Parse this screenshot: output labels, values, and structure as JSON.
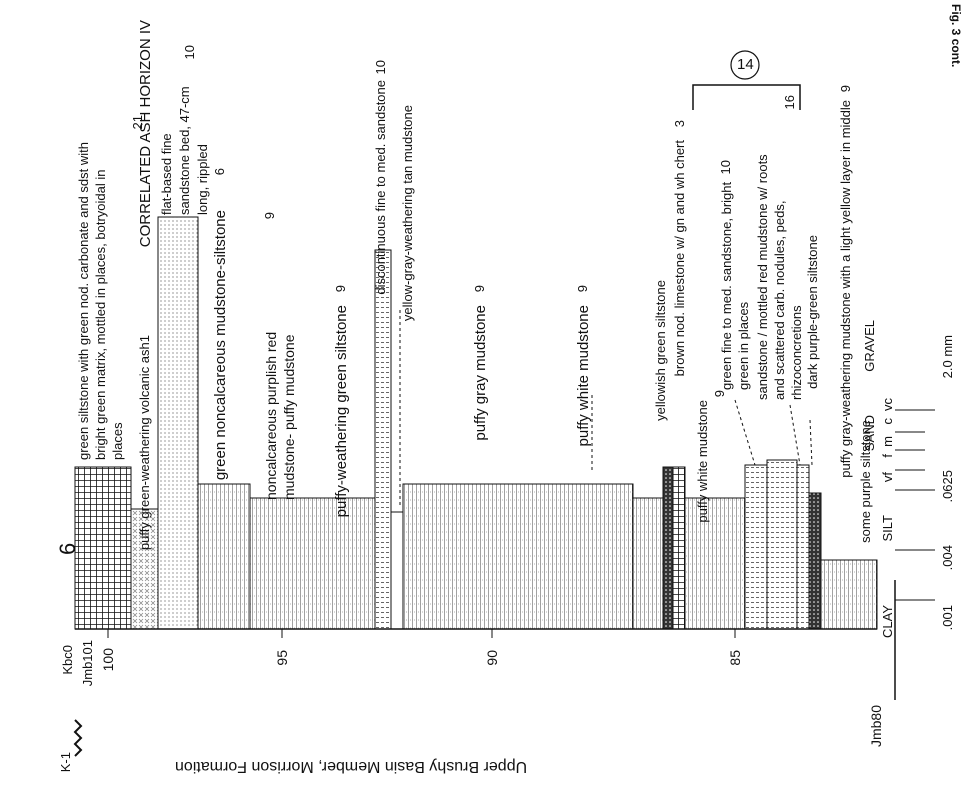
{
  "figure_label": "Fig. 3 cont.",
  "section_number": "6",
  "circled_number": "14",
  "axis": {
    "title": "Upper Brushy Basin Member, Morrison Formation",
    "ticks": [
      "100",
      "95",
      "90",
      "85"
    ],
    "contacts": [
      "Kbc0",
      "K-1",
      "Jmb101",
      "Jmb80"
    ]
  },
  "grain_scale": {
    "classes": [
      "CLAY",
      "SILT",
      "vf",
      "f",
      "m",
      "c",
      "vc",
      "SAND",
      "GRAVEL"
    ],
    "sizes": [
      ".001",
      ".004",
      ".0625",
      "2.0 mm"
    ]
  },
  "units": [
    {
      "text": "green siltstone with green nod. carbonate and sdst with bright green matrix, mottled in places, botryoidal in places",
      "num": "21"
    },
    {
      "text": "puffy green-weathering volcanic ash1",
      "num": ""
    },
    {
      "text": "CORRELATED ASH HORIZON IV",
      "num": ""
    },
    {
      "text": "flat-based fine sandstone bed, 47-cm long, rippled",
      "num": "10"
    },
    {
      "text": "green noncalcareous mudstone-siltstone",
      "num": "6"
    },
    {
      "text": "noncalcareous purplish red mudstone- puffy mudstone",
      "num": "9"
    },
    {
      "text": "puffy-weathering green siltstone",
      "num": "9"
    },
    {
      "text": "discontinuous fine to med. sandstone",
      "num": "10"
    },
    {
      "text": "yellow-gray-weathering tan mudstone",
      "num": ""
    },
    {
      "text": "puffy gray mudstone",
      "num": "9"
    },
    {
      "text": "puffy white mudstone",
      "num": "9"
    },
    {
      "text": "yellowish green siltstone",
      "num": ""
    },
    {
      "text": "brown nod. limestone w/ gn and wh chert",
      "num": "3"
    },
    {
      "text": "puffy white mudstone",
      "num": "9"
    },
    {
      "text": "green fine to med. sandstone, bright green in places",
      "num": "10"
    },
    {
      "text": "sandstone / mottled red mudstone w/ roots and scattered carb. nodules, peds, rhizoconcretions",
      "num": "16"
    },
    {
      "text": "dark purple-green siltstone",
      "num": ""
    },
    {
      "text": "puffy gray-weathering mudstone with a light yellow layer in middle",
      "num": "9"
    },
    {
      "text": "some purple siltstone",
      "num": ""
    }
  ],
  "colors": {
    "ink": "#111111",
    "fill_dots": "#d8d8d8"
  }
}
